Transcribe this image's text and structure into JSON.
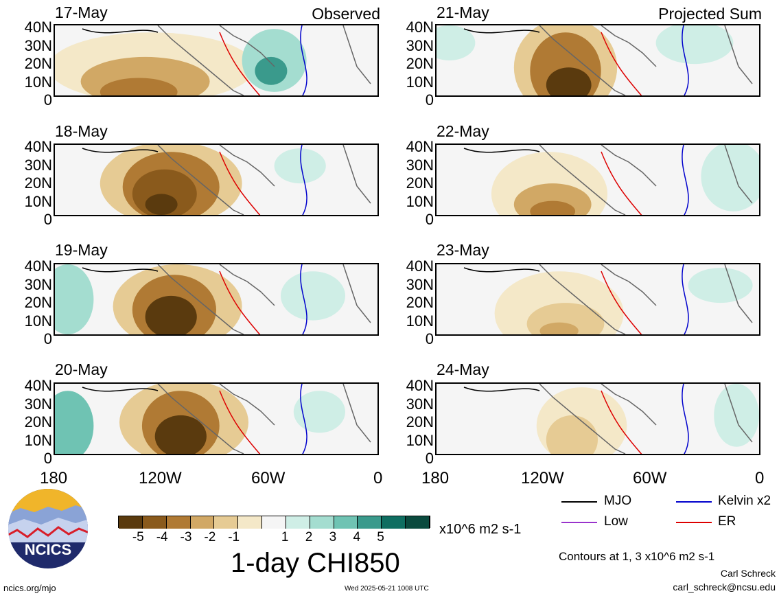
{
  "map_data": {
    "panels_left": [
      {
        "date": "17-May",
        "corner": "Observed"
      },
      {
        "date": "18-May",
        "corner": ""
      },
      {
        "date": "19-May",
        "corner": ""
      },
      {
        "date": "20-May",
        "corner": ""
      }
    ],
    "panels_right": [
      {
        "date": "21-May",
        "corner": "Projected Sum"
      },
      {
        "date": "22-May",
        "corner": ""
      },
      {
        "date": "23-May",
        "corner": ""
      },
      {
        "date": "24-May",
        "corner": ""
      }
    ],
    "lat_labels": [
      "40N",
      "30N",
      "20N",
      "10N",
      "0"
    ],
    "lon_labels": [
      "180",
      "120W",
      "60W",
      "0"
    ],
    "colorbar": {
      "colors": [
        "#5a3a0e",
        "#8a5a1c",
        "#b07a34",
        "#d1a865",
        "#e6cb94",
        "#f4e8c8",
        "#f5f5f5",
        "#cfeee6",
        "#a4ddd0",
        "#6fc3b3",
        "#3a9a8c",
        "#0f6e61",
        "#0a4a3e"
      ],
      "ticks": [
        "-5",
        "-4",
        "-3",
        "-2",
        "-1",
        "1",
        "2",
        "3",
        "4",
        "5"
      ],
      "units": "x10^6 m2 s-1",
      "title": "1-day CHI850"
    },
    "legend": [
      {
        "label": "MJO",
        "color": "#000000"
      },
      {
        "label": "Kelvin x2",
        "color": "#0000cc"
      },
      {
        "label": "Low",
        "color": "#9933cc"
      },
      {
        "label": "ER",
        "color": "#dd0000"
      }
    ],
    "contours_note": "Contours at 1, 3 x10^6 m2 s-1",
    "author": "Carl Schreck",
    "email": "carl_schreck@ncsu.edu",
    "website": "ncics.org/mjo",
    "timestamp": "Wed 2025-05-21 1008 UTC",
    "logo_text": "NCICS"
  }
}
